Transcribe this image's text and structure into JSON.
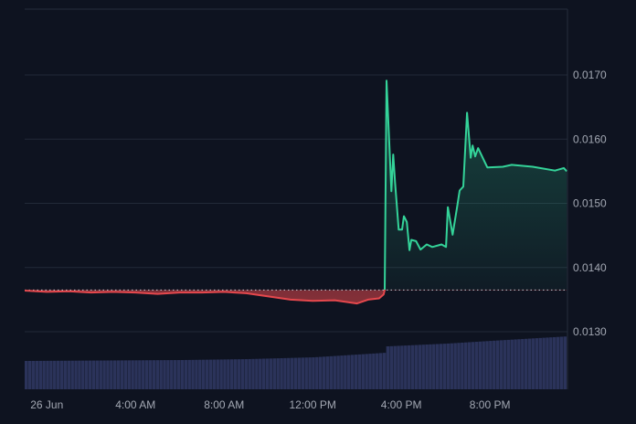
{
  "chart_data": {
    "type": "area",
    "baseline_price": 0.01365,
    "ylim": [
      0.012,
      0.018
    ],
    "y_ticks": [
      "0.0170",
      "0.0160",
      "0.0150",
      "0.0140",
      "0.0130"
    ],
    "y_tick_values": [
      0.017,
      0.016,
      0.015,
      0.014,
      0.013
    ],
    "x_ticks": [
      "26 Jun",
      "4:00 AM",
      "8:00 AM",
      "12:00 PM",
      "4:00 PM",
      "8:00 PM"
    ],
    "x_tick_hours": [
      0,
      4,
      8,
      12,
      16,
      20
    ],
    "xlim_hours": [
      -1,
      23.5
    ],
    "grid": true,
    "colors": {
      "background": "#0e1320",
      "grid": "#222a38",
      "up_line": "#34d399",
      "down_line": "#e5484d",
      "volume": "#2b335a",
      "baseline": "#c9ccd3"
    },
    "price_series": [
      {
        "t": "25 Jun 23:00",
        "v": 0.01364
      },
      {
        "t": "26 Jun 00:00",
        "v": 0.01362
      },
      {
        "t": "26 Jun 01:00",
        "v": 0.01363
      },
      {
        "t": "26 Jun 02:00",
        "v": 0.01361
      },
      {
        "t": "26 Jun 03:00",
        "v": 0.01362
      },
      {
        "t": "26 Jun 04:00",
        "v": 0.01361
      },
      {
        "t": "26 Jun 05:00",
        "v": 0.01359
      },
      {
        "t": "26 Jun 06:00",
        "v": 0.01361
      },
      {
        "t": "26 Jun 07:00",
        "v": 0.01361
      },
      {
        "t": "26 Jun 08:00",
        "v": 0.01362
      },
      {
        "t": "26 Jun 09:00",
        "v": 0.0136
      },
      {
        "t": "26 Jun 10:00",
        "v": 0.01355
      },
      {
        "t": "26 Jun 11:00",
        "v": 0.0135
      },
      {
        "t": "26 Jun 12:00",
        "v": 0.01348
      },
      {
        "t": "26 Jun 13:00",
        "v": 0.01349
      },
      {
        "t": "26 Jun 14:00",
        "v": 0.01344
      },
      {
        "t": "26 Jun 14:30",
        "v": 0.0135
      },
      {
        "t": "26 Jun 15:00",
        "v": 0.01352
      },
      {
        "t": "26 Jun 15:12",
        "v": 0.01358
      },
      {
        "t": "26 Jun 15:15",
        "v": 0.01365
      },
      {
        "t": "26 Jun 15:20",
        "v": 0.01691
      },
      {
        "t": "26 Jun 15:33",
        "v": 0.01519
      },
      {
        "t": "26 Jun 15:38",
        "v": 0.01576
      },
      {
        "t": "26 Jun 15:43",
        "v": 0.01533
      },
      {
        "t": "26 Jun 15:53",
        "v": 0.01459
      },
      {
        "t": "26 Jun 16:02",
        "v": 0.01459
      },
      {
        "t": "26 Jun 16:07",
        "v": 0.0148
      },
      {
        "t": "26 Jun 16:15",
        "v": 0.01471
      },
      {
        "t": "26 Jun 16:22",
        "v": 0.01427
      },
      {
        "t": "26 Jun 16:27",
        "v": 0.01443
      },
      {
        "t": "26 Jun 16:40",
        "v": 0.01441
      },
      {
        "t": "26 Jun 16:52",
        "v": 0.01428
      },
      {
        "t": "26 Jun 17:09",
        "v": 0.01436
      },
      {
        "t": "26 Jun 17:24",
        "v": 0.01432
      },
      {
        "t": "26 Jun 17:49",
        "v": 0.01436
      },
      {
        "t": "26 Jun 18:01",
        "v": 0.01432
      },
      {
        "t": "26 Jun 18:06",
        "v": 0.01494
      },
      {
        "t": "26 Jun 18:19",
        "v": 0.01451
      },
      {
        "t": "26 Jun 18:31",
        "v": 0.01494
      },
      {
        "t": "26 Jun 18:38",
        "v": 0.0152
      },
      {
        "t": "26 Jun 18:48",
        "v": 0.01526
      },
      {
        "t": "26 Jun 18:58",
        "v": 0.01641
      },
      {
        "t": "26 Jun 19:08",
        "v": 0.01571
      },
      {
        "t": "26 Jun 19:13",
        "v": 0.0159
      },
      {
        "t": "26 Jun 19:20",
        "v": 0.01573
      },
      {
        "t": "26 Jun 19:28",
        "v": 0.01586
      },
      {
        "t": "26 Jun 19:53",
        "v": 0.01556
      },
      {
        "t": "26 Jun 20:35",
        "v": 0.01557
      },
      {
        "t": "26 Jun 20:59",
        "v": 0.0156
      },
      {
        "t": "26 Jun 21:56",
        "v": 0.01557
      },
      {
        "t": "26 Jun 22:56",
        "v": 0.01551
      },
      {
        "t": "26 Jun 23:20",
        "v": 0.01555
      },
      {
        "t": "26 Jun 23:28",
        "v": 0.0155
      }
    ],
    "volume_relative": [
      {
        "t": "25 Jun 23:00",
        "v": 31
      },
      {
        "t": "26 Jun 06:00",
        "v": 32
      },
      {
        "t": "26 Jun 09:00",
        "v": 33
      },
      {
        "t": "26 Jun 12:00",
        "v": 35
      },
      {
        "t": "26 Jun 15:15",
        "v": 40
      },
      {
        "t": "26 Jun 15:20",
        "v": 47
      },
      {
        "t": "26 Jun 18:00",
        "v": 50
      },
      {
        "t": "26 Jun 20:00",
        "v": 53
      },
      {
        "t": "26 Jun 23:30",
        "v": 58
      }
    ]
  }
}
